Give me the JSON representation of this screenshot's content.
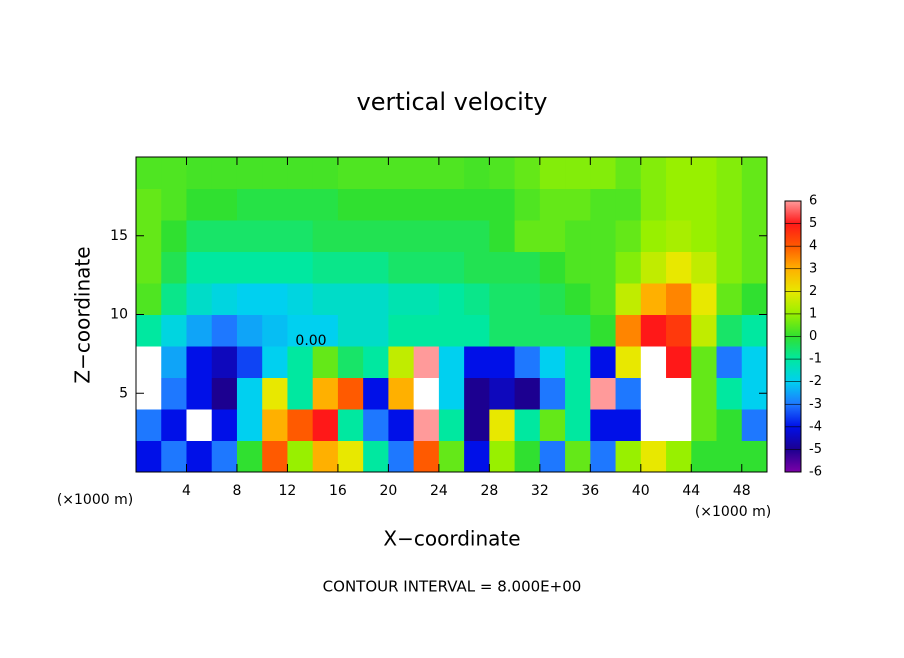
{
  "chart_data": {
    "type": "heatmap",
    "title": "vertical velocity",
    "x_label": "X−coordinate",
    "y_label": "Z−coordinate",
    "x_unit": "(×1000 m)",
    "x_unit_right": "(×1000 m)",
    "footer": "CONTOUR INTERVAL = 8.000E+00",
    "annotations": [
      "0.00"
    ],
    "xlim": [
      0,
      50
    ],
    "ylim": [
      0,
      20
    ],
    "xticks": [
      4,
      8,
      12,
      16,
      20,
      24,
      28,
      32,
      36,
      40,
      44,
      48
    ],
    "yticks": [
      5,
      10,
      15
    ],
    "x": [
      1,
      3,
      5,
      7,
      9,
      11,
      13,
      15,
      17,
      19,
      21,
      23,
      25,
      27,
      29,
      31,
      33,
      35,
      37,
      39,
      41,
      43,
      45,
      47,
      49
    ],
    "y": [
      1,
      3,
      5,
      7,
      9,
      11,
      13,
      15,
      17,
      19
    ],
    "values": [
      [
        -4,
        -3,
        -4,
        -3,
        0,
        4,
        1,
        3,
        2,
        -1,
        -3,
        4,
        0.5,
        -4,
        1,
        0,
        -3,
        0.5,
        -3,
        1,
        2,
        1,
        0,
        0,
        0
      ],
      [
        -3,
        -4,
        7,
        -4,
        -2,
        3,
        4,
        5,
        -1,
        -3,
        -4,
        6,
        -1,
        -5,
        2,
        -1,
        0.5,
        -1,
        -4,
        -4,
        7,
        7,
        0.5,
        0,
        -3
      ],
      [
        7,
        -3,
        -4,
        -5,
        -2,
        2,
        -1,
        3,
        4,
        -4,
        3,
        7,
        -2,
        -5,
        -4.5,
        -5,
        -3,
        -1,
        6,
        -3,
        8,
        7,
        0.5,
        -1,
        -2
      ],
      [
        7,
        -2.5,
        -4,
        -4.5,
        -3.5,
        -2,
        -1,
        0.5,
        -0.5,
        -1,
        1.5,
        6,
        -2,
        -4,
        -4,
        -3,
        -2,
        -1,
        -4,
        2,
        7,
        5,
        0.5,
        -3,
        -2
      ],
      [
        -1,
        -1.8,
        -2.5,
        -3,
        -2.5,
        -2.2,
        -2,
        -2,
        -1.5,
        -1.5,
        -1,
        -1,
        -1,
        -1,
        -0.5,
        -0.5,
        -0.5,
        -0.5,
        0,
        3.5,
        5,
        4.5,
        1.5,
        -0.5,
        -1
      ],
      [
        0.3,
        -0.8,
        -1.5,
        -1.8,
        -2,
        -2,
        -1.8,
        -1.5,
        -1.5,
        -1.5,
        -1.2,
        -1.2,
        -1,
        -0.8,
        -0.5,
        -0.5,
        -0.3,
        0,
        0.3,
        1.5,
        3,
        3.5,
        2,
        0.5,
        0
      ],
      [
        0.5,
        -0.3,
        -1,
        -1,
        -1,
        -1,
        -1,
        -0.8,
        -0.8,
        -0.8,
        -0.5,
        -0.5,
        -0.5,
        -0.3,
        -0.3,
        -0.3,
        0,
        0.3,
        0.3,
        0.8,
        1.5,
        2,
        1.5,
        0.8,
        0.5
      ],
      [
        0.5,
        0,
        -0.5,
        -0.5,
        -0.5,
        -0.5,
        -0.5,
        -0.3,
        -0.3,
        -0.3,
        -0.3,
        -0.3,
        -0.3,
        -0.3,
        0,
        0.5,
        0.5,
        0.3,
        0.3,
        0.5,
        1,
        1.2,
        1,
        0.8,
        0.5
      ],
      [
        0.5,
        0.3,
        0,
        0,
        -0.2,
        -0.2,
        -0.2,
        -0.2,
        0,
        0,
        0,
        0,
        0,
        0,
        0,
        0.3,
        0.5,
        0.5,
        0.3,
        0.3,
        0.8,
        1,
        1,
        0.8,
        0.5
      ],
      [
        0.3,
        0.3,
        0.2,
        0.2,
        0.2,
        0.2,
        0.2,
        0.2,
        0.3,
        0.3,
        0.3,
        0.3,
        0.3,
        0.2,
        0.3,
        0.5,
        0.8,
        0.8,
        0.8,
        0.5,
        0.8,
        1,
        1,
        0.8,
        0.5
      ]
    ],
    "colorbar": {
      "ticks": [
        -6,
        -5,
        -4,
        -3,
        -2,
        -1,
        0,
        1,
        2,
        3,
        4,
        5,
        6
      ],
      "colors": [
        "#7b00a8",
        "#1c0090",
        "#0010e8",
        "#1e78ff",
        "#00d0f0",
        "#00e8a0",
        "#30e030",
        "#98f000",
        "#e8e800",
        "#ffb000",
        "#ff5a00",
        "#ff1818",
        "#ff9a9a"
      ],
      "over_color": "#ffffff"
    }
  }
}
